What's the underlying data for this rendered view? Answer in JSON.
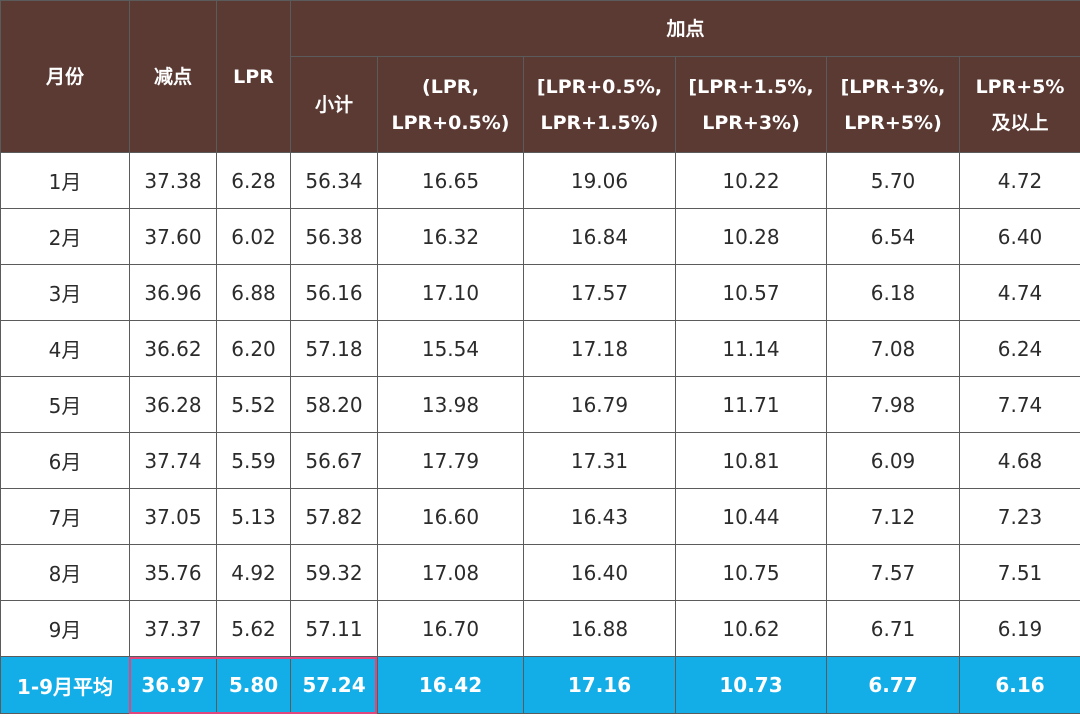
{
  "header": {
    "month": "月份",
    "reduce": "减点",
    "lpr": "LPR",
    "add_group": "加点",
    "subtotal": "小计",
    "ranges": [
      [
        "(LPR,",
        "LPR+0.5%)"
      ],
      [
        "[LPR+0.5%,",
        "LPR+1.5%)"
      ],
      [
        "[LPR+1.5%,",
        "LPR+3%)"
      ],
      [
        "[LPR+3%,",
        "LPR+5%)"
      ],
      [
        "LPR+5%",
        "及以上"
      ]
    ]
  },
  "rows": [
    [
      "1月",
      "37.38",
      "6.28",
      "56.34",
      "16.65",
      "19.06",
      "10.22",
      "5.70",
      "4.72"
    ],
    [
      "2月",
      "37.60",
      "6.02",
      "56.38",
      "16.32",
      "16.84",
      "10.28",
      "6.54",
      "6.40"
    ],
    [
      "3月",
      "36.96",
      "6.88",
      "56.16",
      "17.10",
      "17.57",
      "10.57",
      "6.18",
      "4.74"
    ],
    [
      "4月",
      "36.62",
      "6.20",
      "57.18",
      "15.54",
      "17.18",
      "11.14",
      "7.08",
      "6.24"
    ],
    [
      "5月",
      "36.28",
      "5.52",
      "58.20",
      "13.98",
      "16.79",
      "11.71",
      "7.98",
      "7.74"
    ],
    [
      "6月",
      "37.74",
      "5.59",
      "56.67",
      "17.79",
      "17.31",
      "10.81",
      "6.09",
      "4.68"
    ],
    [
      "7月",
      "37.05",
      "5.13",
      "57.82",
      "16.60",
      "16.43",
      "10.44",
      "7.12",
      "7.23"
    ],
    [
      "8月",
      "35.76",
      "4.92",
      "59.32",
      "17.08",
      "16.40",
      "10.75",
      "7.57",
      "7.51"
    ],
    [
      "9月",
      "37.37",
      "5.62",
      "57.11",
      "16.70",
      "16.88",
      "10.62",
      "6.71",
      "6.19"
    ]
  ],
  "average": [
    "1-9月平均",
    "36.97",
    "5.80",
    "57.24",
    "16.42",
    "17.16",
    "10.73",
    "6.77",
    "6.16"
  ],
  "colors": {
    "header_bg": "#5a3a33",
    "average_bg": "#13aee8",
    "highlight_border": "#e1467c"
  }
}
